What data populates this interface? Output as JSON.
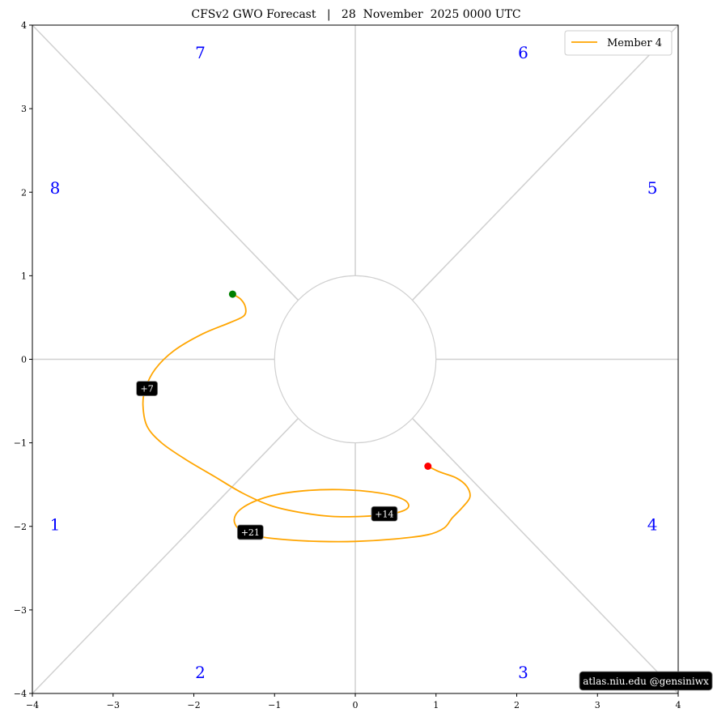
{
  "chart_data": {
    "type": "line",
    "title": "CFSv2 GWO Forecast   |   28  November  2025 0000 UTC",
    "xlim": [
      -4,
      4
    ],
    "ylim": [
      -4,
      4
    ],
    "xticks": [
      -4,
      -3,
      -2,
      -1,
      0,
      1,
      2,
      3,
      4
    ],
    "yticks": [
      -4,
      -3,
      -2,
      -1,
      0,
      1,
      2,
      3,
      4
    ],
    "tick_labels": [
      "−4",
      "−3",
      "−2",
      "−1",
      "0",
      "1",
      "2",
      "3",
      "4"
    ],
    "grid": false,
    "legend_position": "top-right",
    "phase_labels": [
      {
        "label": "1",
        "x": -3.72,
        "y": -1.98
      },
      {
        "label": "2",
        "x": -1.92,
        "y": -3.75
      },
      {
        "label": "3",
        "x": 2.08,
        "y": -3.75
      },
      {
        "label": "4",
        "x": 3.68,
        "y": -1.98
      },
      {
        "label": "5",
        "x": 3.68,
        "y": 2.05
      },
      {
        "label": "6",
        "x": 2.08,
        "y": 3.67
      },
      {
        "label": "7",
        "x": -1.92,
        "y": 3.67
      },
      {
        "label": "8",
        "x": -3.72,
        "y": 2.05
      }
    ],
    "series": [
      {
        "name": "Member 4",
        "color": "#ffa500",
        "x": [
          -1.52,
          -1.42,
          -1.36,
          -1.38,
          -1.55,
          -1.9,
          -2.25,
          -2.48,
          -2.6,
          -2.63,
          -2.58,
          -2.4,
          -2.1,
          -1.75,
          -1.4,
          -1.05,
          -0.7,
          -0.3,
          0.1,
          0.45,
          0.65,
          0.6,
          0.3,
          -0.2,
          -0.7,
          -1.1,
          -1.4,
          -1.5,
          -1.42,
          -1.2,
          -0.85,
          -0.45,
          0.0,
          0.5,
          0.9,
          1.1,
          1.2,
          1.32,
          1.42,
          1.38,
          1.25,
          1.05,
          0.9
        ],
        "y": [
          0.78,
          0.72,
          0.62,
          0.52,
          0.44,
          0.3,
          0.1,
          -0.12,
          -0.35,
          -0.55,
          -0.8,
          -1.0,
          -1.2,
          -1.4,
          -1.6,
          -1.75,
          -1.83,
          -1.88,
          -1.88,
          -1.85,
          -1.78,
          -1.68,
          -1.6,
          -1.56,
          -1.58,
          -1.65,
          -1.78,
          -1.92,
          -2.05,
          -2.12,
          -2.16,
          -2.18,
          -2.18,
          -2.15,
          -2.1,
          -2.02,
          -1.9,
          -1.78,
          -1.65,
          -1.52,
          -1.42,
          -1.35,
          -1.28
        ]
      }
    ],
    "start_point": {
      "x": -1.52,
      "y": 0.78,
      "color": "#008000"
    },
    "end_point": {
      "x": 0.9,
      "y": -1.28,
      "color": "#ff0000"
    },
    "day_labels": [
      {
        "text": "+7",
        "x": -2.58,
        "y": -0.35
      },
      {
        "text": "+14",
        "x": 0.36,
        "y": -1.85
      },
      {
        "text": "+21",
        "x": -1.3,
        "y": -2.07
      }
    ],
    "credit": "atlas.niu.edu  @gensiniwx"
  },
  "colors": {
    "guide_lines": "#d0d0d0",
    "phase_label": "#0000ff",
    "series": "#ffa500",
    "start": "#008000",
    "end": "#ff0000",
    "label_box": "#000000"
  }
}
